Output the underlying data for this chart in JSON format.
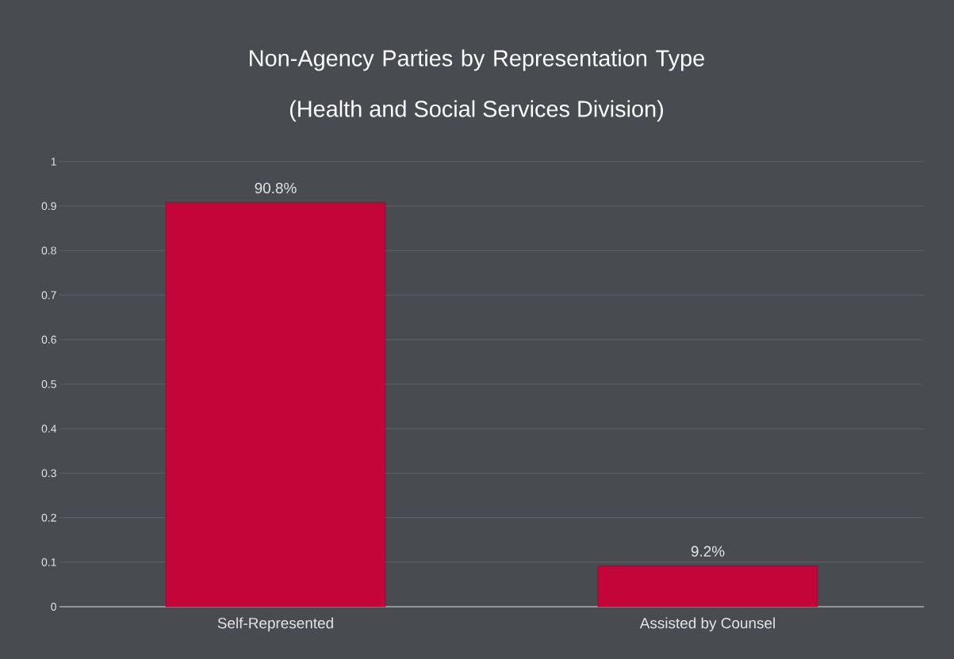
{
  "chart_data": {
    "type": "bar",
    "title": "Non-Agency Parties by Representation Type",
    "subtitle": "(Health and Social Services Division)",
    "categories": [
      "Self-Represented",
      "Assisted by Counsel"
    ],
    "values": [
      0.908,
      0.092
    ],
    "value_labels": [
      "90.8%",
      "9.2%"
    ],
    "color": "#c4053a",
    "ylim": [
      0,
      1
    ],
    "yticks": [
      0,
      0.1,
      0.2,
      0.3,
      0.4,
      0.5,
      0.6,
      0.7,
      0.8,
      0.9,
      1
    ],
    "grid": "y"
  }
}
